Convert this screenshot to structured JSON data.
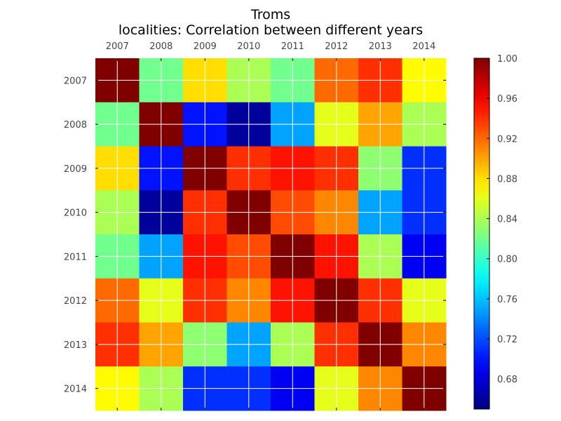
{
  "chart_data": {
    "type": "heatmap",
    "title": "Troms",
    "subtitle": "localities: Correlation between different years",
    "x_categories": [
      "2007",
      "2008",
      "2009",
      "2010",
      "2011",
      "2012",
      "2013",
      "2014"
    ],
    "y_categories": [
      "2007",
      "2008",
      "2009",
      "2010",
      "2011",
      "2012",
      "2013",
      "2014"
    ],
    "x_tick_position": "top",
    "colormap": "jet",
    "vmin": 0.65,
    "vmax": 1.0,
    "colorbar_ticks": [
      "1.00",
      "0.96",
      "0.92",
      "0.88",
      "0.84",
      "0.80",
      "0.76",
      "0.72",
      "0.68"
    ],
    "grid": true,
    "values": [
      [
        1.0,
        0.82,
        0.88,
        0.84,
        0.82,
        0.92,
        0.94,
        0.87
      ],
      [
        0.82,
        1.0,
        0.7,
        0.66,
        0.75,
        0.86,
        0.9,
        0.84
      ],
      [
        0.88,
        0.7,
        1.0,
        0.94,
        0.95,
        0.94,
        0.83,
        0.71
      ],
      [
        0.84,
        0.66,
        0.94,
        1.0,
        0.93,
        0.91,
        0.75,
        0.71
      ],
      [
        0.82,
        0.75,
        0.95,
        0.93,
        1.0,
        0.95,
        0.84,
        0.69
      ],
      [
        0.92,
        0.86,
        0.94,
        0.91,
        0.95,
        1.0,
        0.94,
        0.86
      ],
      [
        0.94,
        0.9,
        0.83,
        0.75,
        0.84,
        0.94,
        1.0,
        0.91
      ],
      [
        0.87,
        0.84,
        0.71,
        0.71,
        0.69,
        0.86,
        0.91,
        1.0
      ]
    ]
  }
}
